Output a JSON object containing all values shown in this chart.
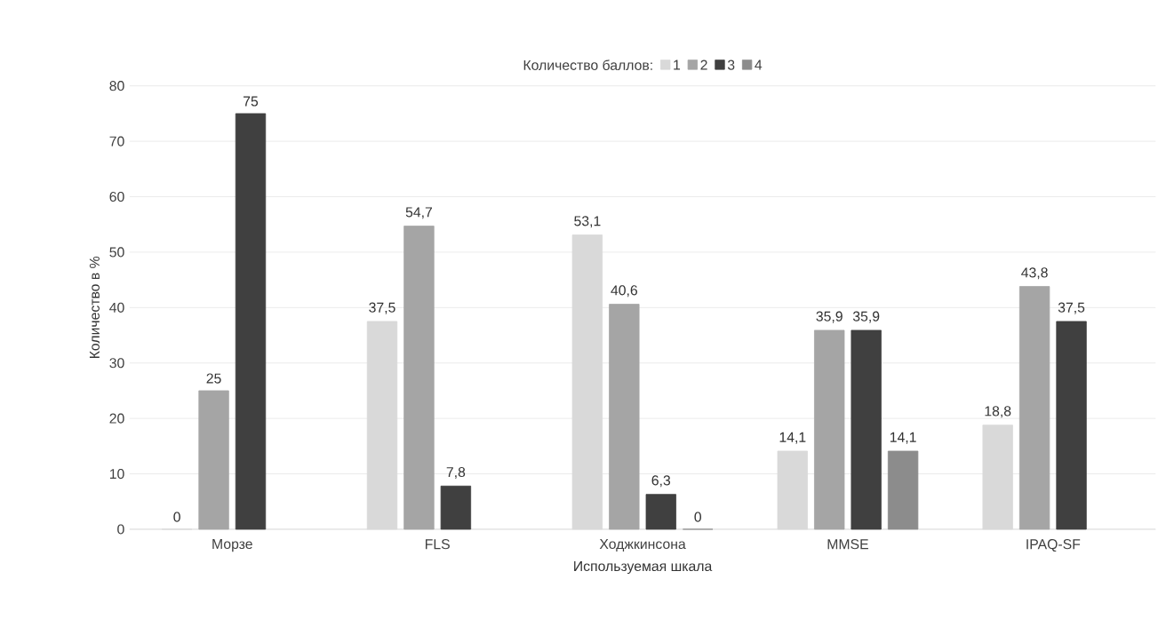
{
  "chart_data": {
    "type": "bar",
    "xlabel": "Используемая шкала",
    "ylabel": "Количество в %",
    "legend_title": "Количество баллов:",
    "legend": "top",
    "grid": "y",
    "categories": [
      "Морзе",
      "FLS",
      "Ходжкинсона",
      "MMSE",
      "IPAQ-SF"
    ],
    "ylim": [
      0,
      80
    ],
    "yticks": [
      0,
      10,
      20,
      30,
      40,
      50,
      60,
      70,
      80
    ],
    "series": [
      {
        "name": "1",
        "color": "#d9d9d9",
        "values": [
          0,
          37.5,
          53.1,
          14.1,
          18.8
        ],
        "value_labels": [
          "0",
          "37,5",
          "53,1",
          "14,1",
          "18,8"
        ]
      },
      {
        "name": "2",
        "color": "#a5a5a5",
        "values": [
          25,
          54.7,
          40.6,
          35.9,
          43.8
        ],
        "value_labels": [
          "25",
          "54,7",
          "40,6",
          "35,9",
          "43,8"
        ]
      },
      {
        "name": "3",
        "color": "#404040",
        "values": [
          75,
          7.8,
          6.3,
          35.9,
          37.5
        ],
        "value_labels": [
          "75",
          "7,8",
          "6,3",
          "35,9",
          "37,5"
        ]
      },
      {
        "name": "4",
        "color": "#8c8c8c",
        "values": [
          null,
          null,
          0,
          14.1,
          null
        ],
        "value_labels": [
          null,
          null,
          "0",
          "14,1",
          null
        ]
      }
    ]
  }
}
